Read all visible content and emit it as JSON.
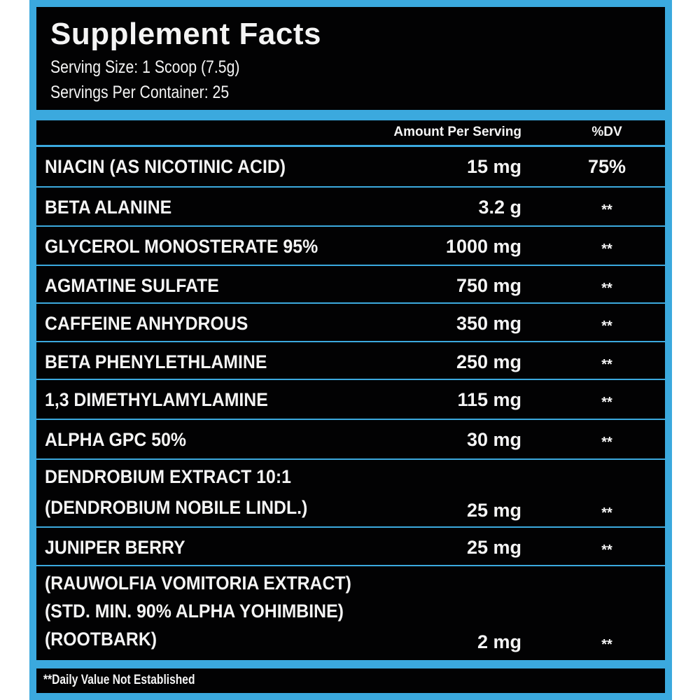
{
  "title": "Supplement Facts",
  "serving_size": "Serving Size: 1 Scoop (7.5g)",
  "servings_per_container": "Servings Per Container: 25",
  "columns": {
    "amount": "Amount Per Serving",
    "dv": "%DV"
  },
  "rows": [
    {
      "name": [
        "NIACIN (AS NICOTINIC ACID)"
      ],
      "amount": "15 mg",
      "dv": "75%"
    },
    {
      "name": [
        "BETA ALANINE"
      ],
      "amount": "3.2 g",
      "dv": "**"
    },
    {
      "name": [
        "GLYCEROL MONOSTERATE 95%"
      ],
      "amount": "1000 mg",
      "dv": "**"
    },
    {
      "name": [
        "AGMATINE SULFATE"
      ],
      "amount": "750 mg",
      "dv": "**"
    },
    {
      "name": [
        "CAFFEINE ANHYDROUS"
      ],
      "amount": "350 mg",
      "dv": "**"
    },
    {
      "name": [
        "BETA PHENYLETHLAMINE"
      ],
      "amount": "250 mg",
      "dv": "**"
    },
    {
      "name": [
        "1,3 DIMETHYLAMYLAMINE"
      ],
      "amount": "115 mg",
      "dv": "**"
    },
    {
      "name": [
        "ALPHA GPC 50%"
      ],
      "amount": "30 mg",
      "dv": "**"
    },
    {
      "name": [
        "DENDROBIUM EXTRACT 10:1",
        "(DENDROBIUM NOBILE LINDL.)"
      ],
      "amount": "25 mg",
      "dv": "**"
    },
    {
      "name": [
        "JUNIPER BERRY"
      ],
      "amount": "25 mg",
      "dv": "**"
    },
    {
      "name": [
        "(RAUWOLFIA VOMITORIA EXTRACT)",
        "(STD. MIN. 90% ALPHA YOHIMBINE)",
        "(ROOTBARK)"
      ],
      "amount": "2 mg",
      "dv": "**"
    }
  ],
  "footnote": "**Daily Value Not Established",
  "colors": {
    "frame": "#3ba9de",
    "panel": "#020203",
    "text": "#f4f4f4"
  }
}
